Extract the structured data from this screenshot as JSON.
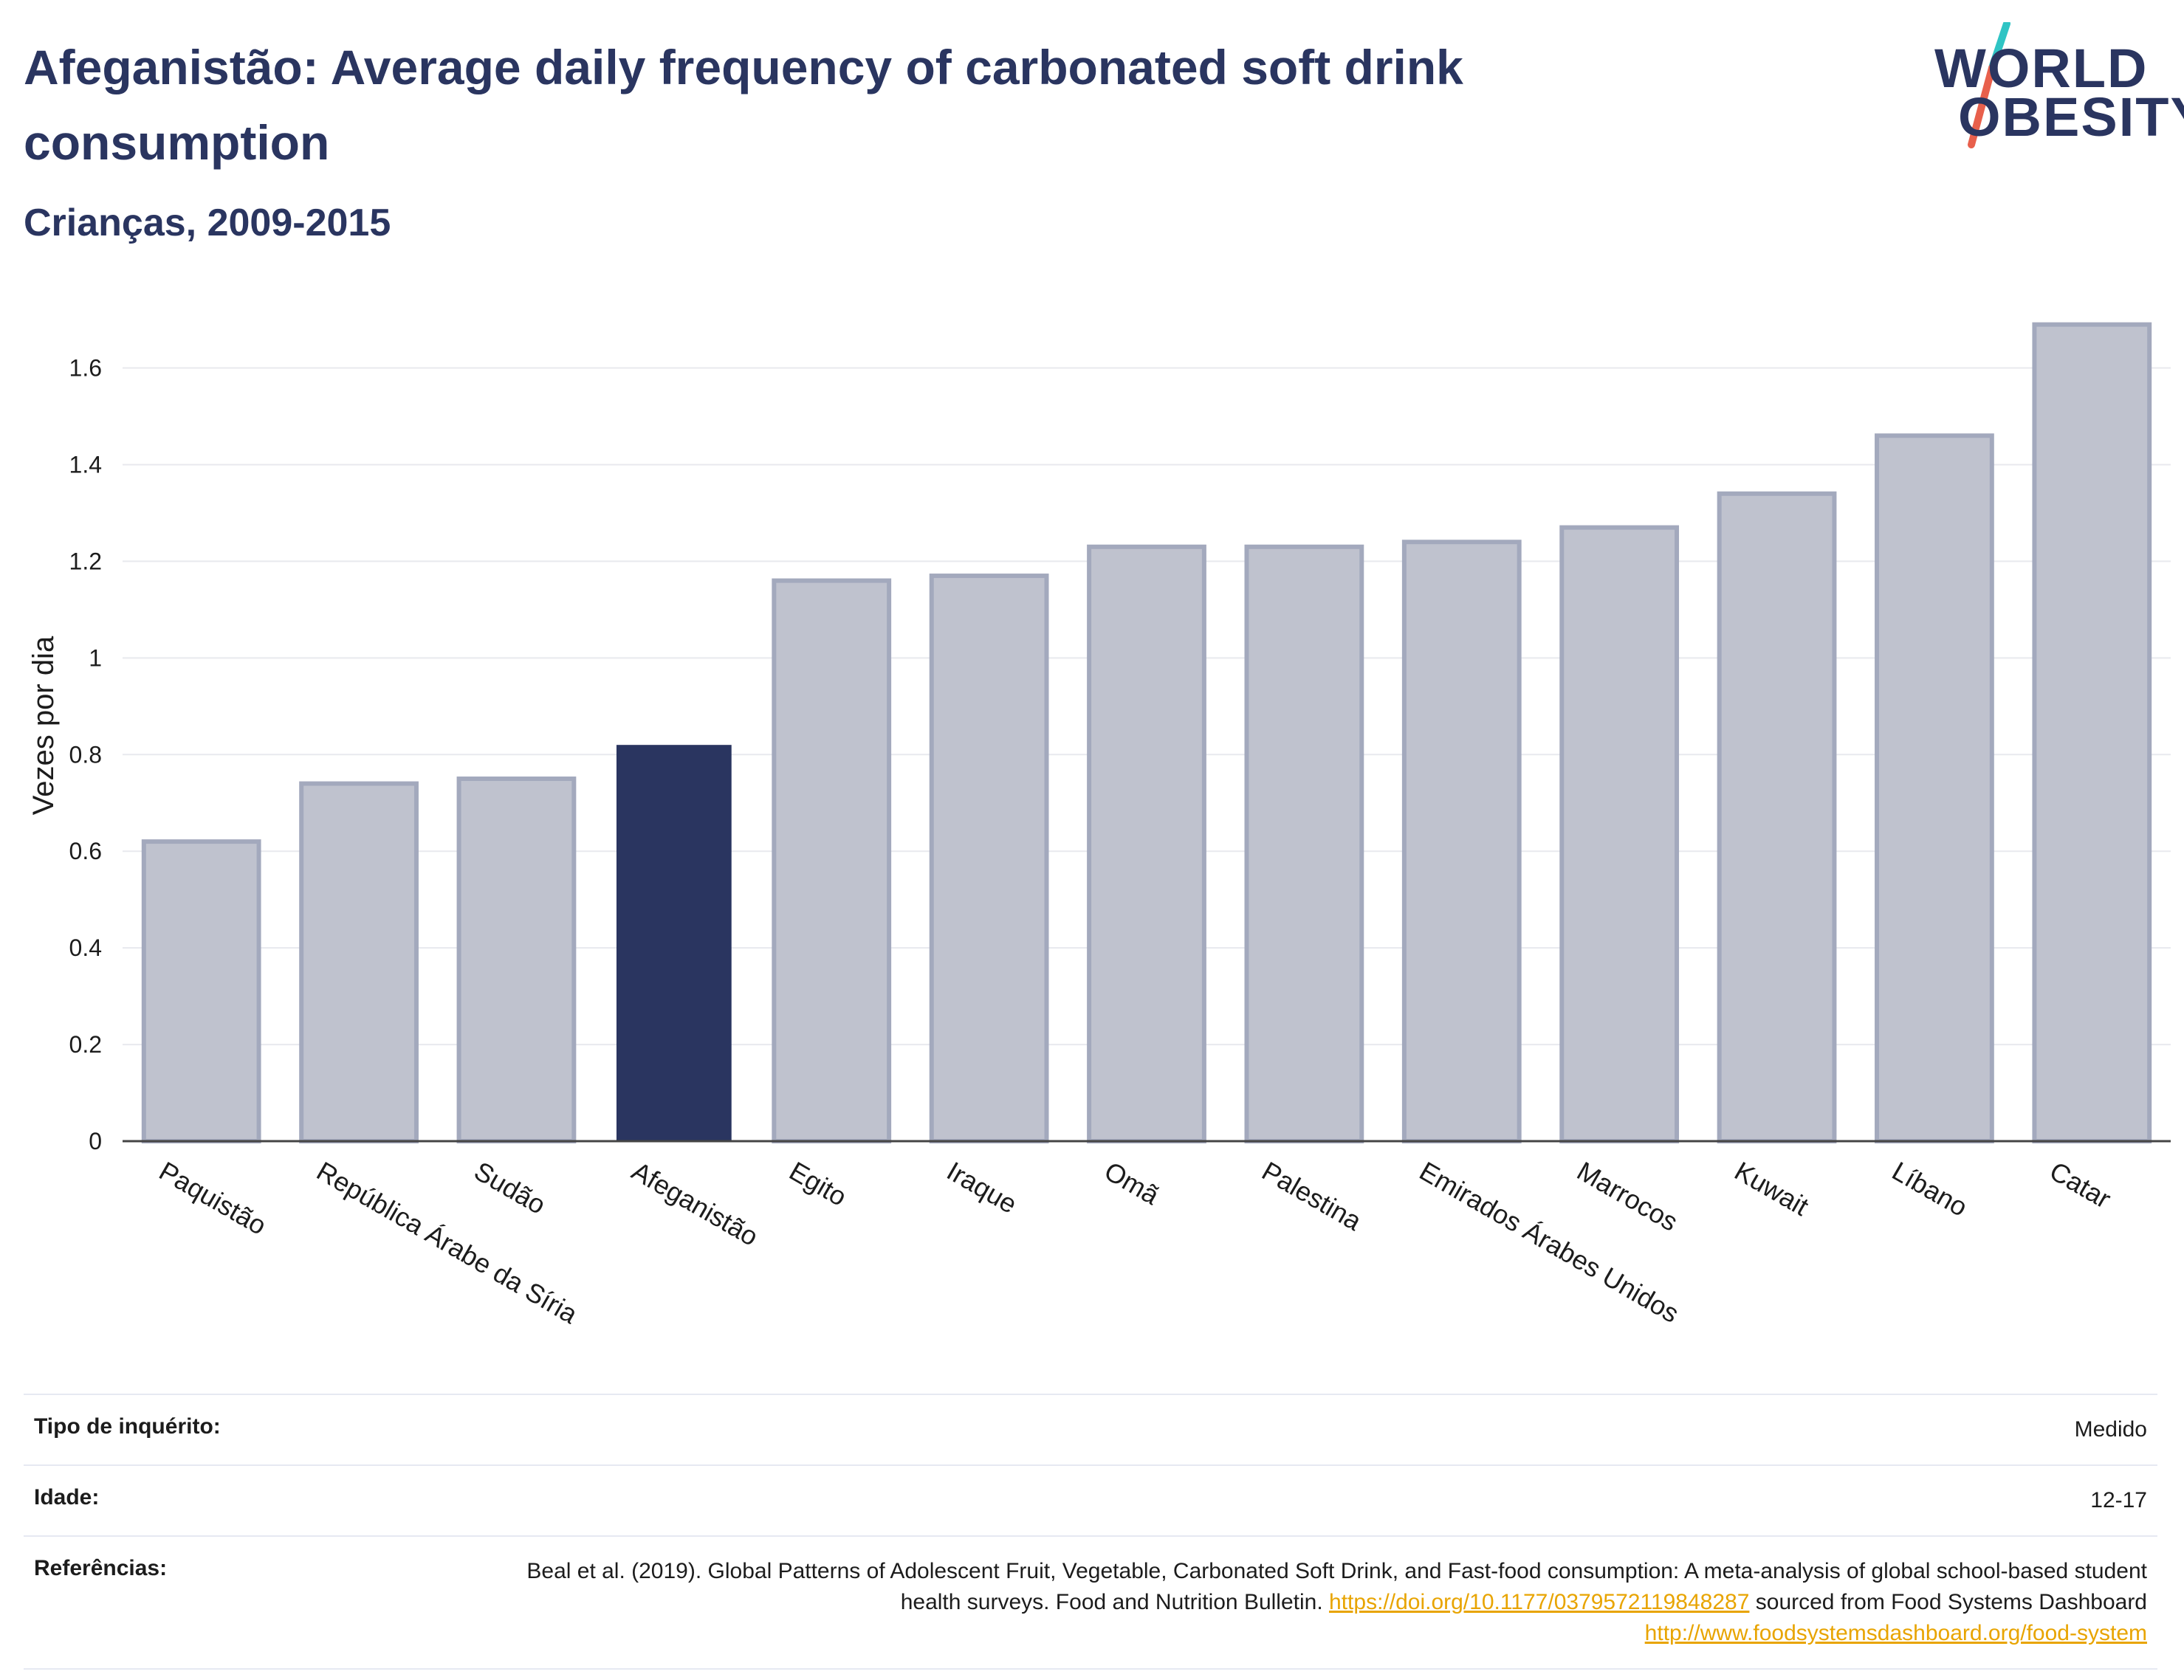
{
  "header": {
    "title": "Afeganistão: Average daily frequency of carbonated soft drink consumption",
    "subtitle": "Crianças, 2009-2015"
  },
  "logo": {
    "line1": "WORLD",
    "line2": "OBESITY",
    "accent_colors": [
      "#2fc4c4",
      "#e8604c"
    ]
  },
  "chart_data": {
    "type": "bar",
    "title": "Afeganistão: Average daily frequency of carbonated soft drink consumption",
    "ylabel": "Vezes por dia",
    "ylim": [
      0,
      1.72
    ],
    "yticks": [
      0,
      0.2,
      0.4,
      0.6,
      0.8,
      1,
      1.2,
      1.4,
      1.6
    ],
    "ytick_labels": [
      "0",
      "0.2",
      "0.4",
      "0.6",
      "0.8",
      "1",
      "1.2",
      "1.4",
      "1.6"
    ],
    "categories": [
      "Paquistão",
      "República Árabe da Síria",
      "Sudão",
      "Afeganistão",
      "Egito",
      "Iraque",
      "Omã",
      "Palestina",
      "Emirados Árabes Unidos",
      "Marrocos",
      "Kuwait",
      "Líbano",
      "Catar"
    ],
    "values": [
      0.62,
      0.74,
      0.75,
      0.82,
      1.16,
      1.17,
      1.23,
      1.23,
      1.24,
      1.27,
      1.34,
      1.46,
      1.69
    ],
    "highlight": "Afeganistão",
    "colors": {
      "highlight": "#2a3560",
      "other": "#bfc2ce",
      "other_border": "#a3a9bd"
    },
    "grid": true
  },
  "info": {
    "survey_label": "Tipo de inquérito:",
    "survey_value": "Medido",
    "age_label": "Idade:",
    "age_value": "12-17",
    "ref_label": "Referências:",
    "ref_text": "Beal et al. (2019). Global Patterns of Adolescent Fruit, Vegetable, Carbonated Soft Drink, and Fast-food consumption: A meta-analysis of global school-based student health surveys. Food and Nutrition Bulletin.",
    "ref_link1": "https://doi.org/10.1177/0379572119848287",
    "ref_mid": "sourced from Food Systems Dashboard",
    "ref_link2": "http://www.foodsystemsdashboard.org/food-system"
  }
}
